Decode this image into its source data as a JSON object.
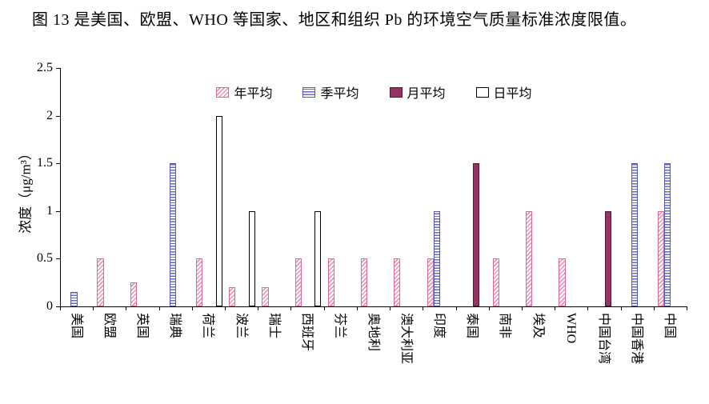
{
  "caption": "图 13 是美国、欧盟、WHO 等国家、地区和组织 Pb 的环境空气质量标准浓度限值。",
  "chart_data": {
    "type": "bar",
    "title": "",
    "xlabel": "",
    "ylabel": "浓度（μg/m³）",
    "ylim": [
      0,
      2.5
    ],
    "yticks": [
      "0",
      "0.5",
      "1",
      "1.5",
      "2",
      "2.5"
    ],
    "grid": false,
    "legend_position": "top-inside",
    "categories": [
      "美国",
      "欧盟",
      "英国",
      "瑞典",
      "荷兰",
      "波兰",
      "瑞士",
      "西班牙",
      "芬兰",
      "奥地利",
      "澳大利亚",
      "印度",
      "泰国",
      "南非",
      "埃及",
      "WHO",
      "中国台湾",
      "中国香港",
      "中国"
    ],
    "series": [
      {
        "name": "年平均",
        "pattern": "diagonal-hatch",
        "color": "#f093bb",
        "values": [
          null,
          0.5,
          0.25,
          null,
          0.5,
          0.2,
          0.2,
          0.5,
          0.5,
          0.5,
          0.5,
          0.5,
          null,
          0.5,
          1.0,
          0.5,
          null,
          null,
          1.0
        ]
      },
      {
        "name": "季平均",
        "pattern": "horizontal-lines",
        "color": "#6a6ac0",
        "values": [
          0.15,
          null,
          null,
          1.5,
          null,
          null,
          null,
          null,
          null,
          null,
          null,
          1.0,
          null,
          null,
          null,
          null,
          null,
          1.5,
          1.5
        ]
      },
      {
        "name": "月平均",
        "pattern": "solid",
        "color": "#993366",
        "values": [
          null,
          null,
          null,
          null,
          null,
          null,
          null,
          null,
          null,
          null,
          null,
          null,
          1.5,
          null,
          null,
          null,
          1.0,
          null,
          null
        ]
      },
      {
        "name": "日平均",
        "pattern": "none",
        "color": "#ffffff",
        "values": [
          null,
          null,
          null,
          null,
          2.0,
          1.0,
          null,
          1.0,
          null,
          null,
          null,
          null,
          null,
          null,
          null,
          null,
          null,
          null,
          null
        ]
      }
    ]
  }
}
